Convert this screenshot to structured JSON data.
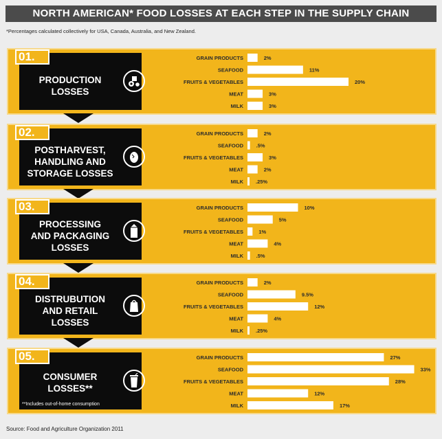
{
  "title": "NORTH AMERICAN* FOOD LOSSES AT EACH STEP IN THE SUPPLY CHAIN",
  "footnote": "*Percentages calculated collectively for USA, Canada, Australia, and New Zealand.",
  "source": "Source: Food and Agriculture Organization 2011",
  "colors": {
    "panel": "#f2b51b",
    "box": "#0c0c0c",
    "bar": "#ffffff",
    "title_bg": "#4b4b4b"
  },
  "stages": [
    {
      "num": "01.",
      "label": "PRODUCTION\nLOSSES",
      "icon": "tractor-icon",
      "note": ""
    },
    {
      "num": "02.",
      "label": "POSTHARVEST,\nHANDLING AND\nSTORAGE LOSSES",
      "icon": "egg-icon",
      "note": ""
    },
    {
      "num": "03.",
      "label": "PROCESSING\nAND PACKAGING\nLOSSES",
      "icon": "carton-icon",
      "note": ""
    },
    {
      "num": "04.",
      "label": "DISTRUBUTION\nAND RETAIL\nLOSSES",
      "icon": "bag-icon",
      "note": ""
    },
    {
      "num": "05.",
      "label": "CONSUMER\nLOSSES**",
      "icon": "cup-icon",
      "note": "**Includes out-of-home consumption"
    }
  ],
  "chart_data": {
    "type": "bar",
    "orientation": "horizontal",
    "categories": [
      "GRAIN PRODUCTS",
      "SEAFOOD",
      "FRUITS & VEGETABLES",
      "MEAT",
      "MILK"
    ],
    "series": [
      {
        "name": "PRODUCTION LOSSES",
        "values": [
          2,
          11,
          20,
          3,
          3
        ],
        "labels": [
          "2%",
          "11%",
          "20%",
          "3%",
          "3%"
        ]
      },
      {
        "name": "POSTHARVEST, HANDLING AND STORAGE LOSSES",
        "values": [
          2,
          0.5,
          3,
          2,
          0.25
        ],
        "labels": [
          "2%",
          ".5%",
          "3%",
          "2%",
          ".25%"
        ]
      },
      {
        "name": "PROCESSING AND PACKAGING LOSSES",
        "values": [
          10,
          5,
          1,
          4,
          0.5
        ],
        "labels": [
          "10%",
          "5%",
          "1%",
          "4%",
          ".5%"
        ]
      },
      {
        "name": "DISTRUBUTION AND RETAIL LOSSES",
        "values": [
          2,
          9.5,
          12,
          4,
          0.25
        ],
        "labels": [
          "2%",
          "9.5%",
          "12%",
          "4%",
          ".25%"
        ]
      },
      {
        "name": "CONSUMER LOSSES**",
        "values": [
          27,
          33,
          28,
          12,
          17
        ],
        "labels": [
          "27%",
          "33%",
          "28%",
          "12%",
          "17%"
        ]
      }
    ]
  }
}
